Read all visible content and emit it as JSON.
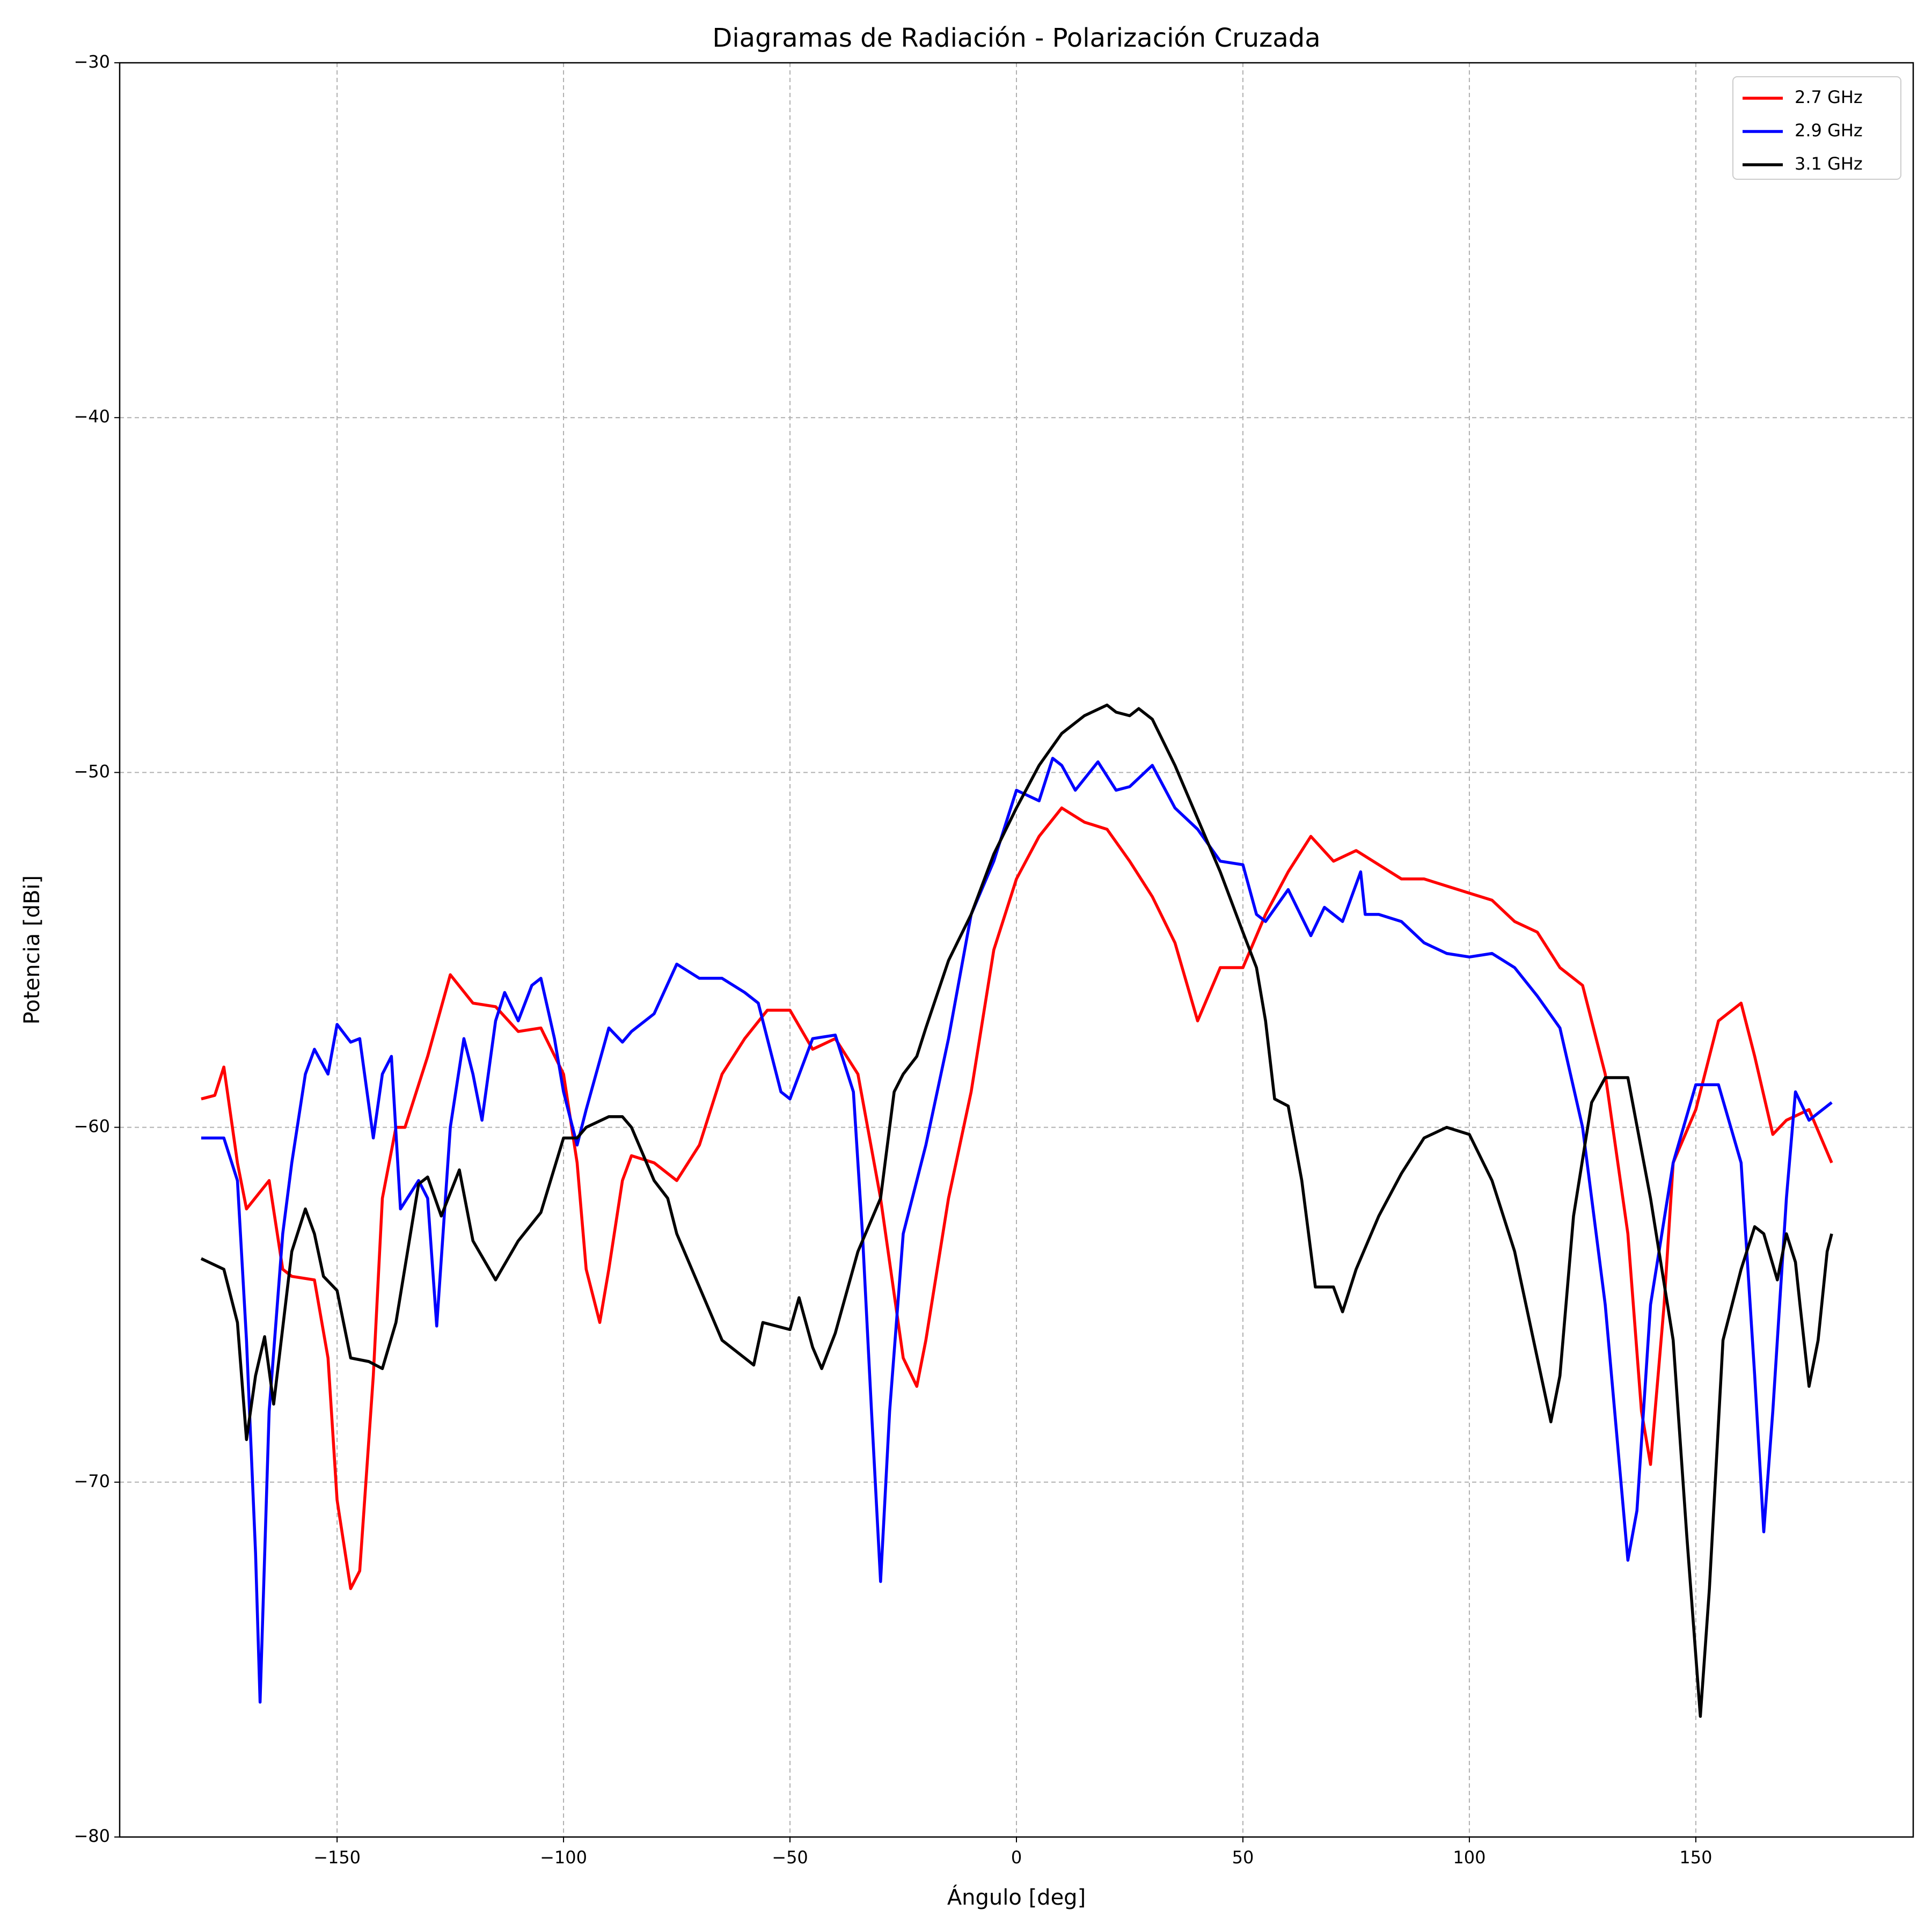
{
  "chart_data": {
    "type": "line",
    "title": "Diagramas de Radiación - Polarización Cruzada",
    "xlabel": "Ángulo [deg]",
    "ylabel": "Potencia [dBi]",
    "xlim": [
      -198,
      198
    ],
    "ylim": [
      -80,
      -30
    ],
    "xticks": [
      {
        "value": -150,
        "label": "−150"
      },
      {
        "value": -100,
        "label": "−100"
      },
      {
        "value": -50,
        "label": "−50"
      },
      0,
      50,
      100,
      150
    ],
    "yticks": [
      {
        "value": -80,
        "label": "−80"
      },
      {
        "value": -70,
        "label": "−70"
      },
      {
        "value": -60,
        "label": "−60"
      },
      {
        "value": -50,
        "label": "−50"
      },
      {
        "value": -40,
        "label": "−40"
      },
      {
        "value": -30,
        "label": "−30"
      }
    ],
    "grid": true,
    "legend": "upper right",
    "series": [
      {
        "name": "2.7 GHz",
        "color": "#ff0000",
        "x": [
          -180,
          -177,
          -175,
          -172,
          -170,
          -165,
          -162,
          -160,
          -155,
          -152,
          -150,
          -147,
          -145,
          -142,
          -140,
          -137,
          -135,
          -130,
          -125,
          -120,
          -115,
          -110,
          -105,
          -100,
          -97,
          -95,
          -92,
          -90,
          -87,
          -85,
          -80,
          -75,
          -70,
          -65,
          -60,
          -55,
          -50,
          -45,
          -40,
          -35,
          -30,
          -25,
          -22,
          -20,
          -15,
          -10,
          -5,
          0,
          5,
          10,
          15,
          20,
          25,
          30,
          35,
          40,
          45,
          50,
          55,
          60,
          65,
          70,
          75,
          80,
          85,
          90,
          95,
          100,
          105,
          110,
          115,
          120,
          125,
          130,
          135,
          138,
          140,
          143,
          145,
          150,
          155,
          160,
          163,
          167,
          170,
          175,
          180
        ],
        "values": [
          -59.2,
          -59.1,
          -58.3,
          -61,
          -62.3,
          -61.5,
          -64,
          -64.2,
          -64.3,
          -66.5,
          -70.5,
          -73,
          -72.5,
          -67,
          -62,
          -60,
          -60,
          -58,
          -55.7,
          -56.5,
          -56.6,
          -57.3,
          -57.2,
          -58.5,
          -61,
          -64,
          -65.5,
          -64,
          -61.5,
          -60.8,
          -61,
          -61.5,
          -60.5,
          -58.5,
          -57.5,
          -56.7,
          -56.7,
          -57.8,
          -57.5,
          -58.5,
          -62,
          -66.5,
          -67.3,
          -66,
          -62,
          -59,
          -55,
          -53,
          -51.8,
          -51,
          -51.4,
          -51.6,
          -52.5,
          -53.5,
          -54.8,
          -57,
          -55.5,
          -55.5,
          -54,
          -52.8,
          -51.8,
          -52.5,
          -52.2,
          -52.6,
          -53,
          -53,
          -53.2,
          -53.4,
          -53.6,
          -54.2,
          -54.5,
          -55.5,
          -56,
          -58.5,
          -63,
          -68,
          -69.5,
          -65,
          -61,
          -59.5,
          -57,
          -56.5,
          -58,
          -60.2,
          -59.8,
          -59.5,
          -61
        ]
      },
      {
        "name": "2.9 GHz",
        "color": "#0000ff",
        "x": [
          -180,
          -175,
          -172,
          -170,
          -168,
          -167,
          -165,
          -162,
          -160,
          -157,
          -155,
          -152,
          -150,
          -147,
          -145,
          -142,
          -140,
          -138,
          -136,
          -132,
          -130,
          -128,
          -125,
          -122,
          -120,
          -118,
          -115,
          -113,
          -110,
          -107,
          -105,
          -102,
          -100,
          -97,
          -95,
          -90,
          -87,
          -85,
          -80,
          -75,
          -70,
          -65,
          -60,
          -57,
          -55,
          -52,
          -50,
          -45,
          -40,
          -36,
          -34,
          -32,
          -30,
          -28,
          -25,
          -20,
          -15,
          -10,
          -5,
          0,
          5,
          8,
          10,
          13,
          18,
          22,
          25,
          30,
          35,
          40,
          45,
          50,
          53,
          55,
          60,
          65,
          68,
          72,
          76,
          77,
          80,
          85,
          90,
          95,
          100,
          105,
          110,
          115,
          120,
          125,
          130,
          135,
          137,
          140,
          145,
          150,
          155,
          160,
          163,
          165,
          167,
          170,
          172,
          175,
          180
        ],
        "values": [
          -60.3,
          -60.3,
          -61.5,
          -66,
          -72,
          -76.2,
          -68,
          -63,
          -61,
          -58.5,
          -57.8,
          -58.5,
          -57.1,
          -57.6,
          -57.5,
          -60.3,
          -58.5,
          -58,
          -62.3,
          -61.5,
          -62,
          -65.6,
          -60,
          -57.5,
          -58.5,
          -59.8,
          -57,
          -56.2,
          -57,
          -56,
          -55.8,
          -57.5,
          -59,
          -60.5,
          -59.5,
          -57.2,
          -57.6,
          -57.3,
          -56.8,
          -55.4,
          -55.8,
          -55.8,
          -56.2,
          -56.5,
          -57.5,
          -59,
          -59.2,
          -57.5,
          -57.4,
          -59,
          -63,
          -68,
          -72.8,
          -68,
          -63,
          -60.5,
          -57.5,
          -54,
          -52.5,
          -50.5,
          -50.8,
          -49.6,
          -49.8,
          -50.5,
          -49.7,
          -50.5,
          -50.4,
          -49.8,
          -51,
          -51.6,
          -52.5,
          -52.6,
          -54,
          -54.2,
          -53.3,
          -54.6,
          -53.8,
          -54.2,
          -52.8,
          -54,
          -54,
          -54.2,
          -54.8,
          -55.1,
          -55.2,
          -55.1,
          -55.5,
          -56.3,
          -57.2,
          -60,
          -65,
          -72.2,
          -70.8,
          -65,
          -61,
          -58.8,
          -58.8,
          -61,
          -67,
          -71.4,
          -68,
          -62,
          -59,
          -59.8,
          -59.3
        ]
      },
      {
        "name": "3.1 GHz",
        "color": "#000000",
        "x": [
          -180,
          -175,
          -172,
          -170,
          -168,
          -166,
          -164,
          -160,
          -157,
          -155,
          -153,
          -150,
          -147,
          -143,
          -140,
          -137,
          -132,
          -130,
          -127,
          -123,
          -120,
          -115,
          -110,
          -105,
          -100,
          -97,
          -95,
          -90,
          -87,
          -85,
          -80,
          -77,
          -75,
          -70,
          -65,
          -60,
          -58,
          -56,
          -50,
          -48,
          -45,
          -43,
          -40,
          -35,
          -30,
          -27,
          -25,
          -22,
          -20,
          -15,
          -10,
          -5,
          0,
          5,
          10,
          15,
          20,
          22,
          25,
          27,
          30,
          35,
          40,
          45,
          50,
          53,
          55,
          57,
          60,
          63,
          66,
          70,
          72,
          75,
          80,
          85,
          90,
          95,
          100,
          105,
          110,
          115,
          118,
          120,
          123,
          127,
          130,
          135,
          140,
          145,
          148,
          151,
          153,
          156,
          160,
          163,
          165,
          168,
          170,
          172,
          173,
          175,
          177,
          179,
          180
        ],
        "values": [
          -63.7,
          -64,
          -65.5,
          -68.8,
          -67,
          -65.9,
          -67.8,
          -63.5,
          -62.3,
          -63,
          -64.2,
          -64.6,
          -66.5,
          -66.6,
          -66.8,
          -65.5,
          -61.6,
          -61.4,
          -62.5,
          -61.2,
          -63.2,
          -64.3,
          -63.2,
          -62.4,
          -60.3,
          -60.3,
          -60,
          -59.7,
          -59.7,
          -60,
          -61.5,
          -62,
          -63,
          -64.5,
          -66,
          -66.5,
          -66.7,
          -65.5,
          -65.7,
          -64.8,
          -66.2,
          -66.8,
          -65.8,
          -63.5,
          -62,
          -59,
          -58.5,
          -58,
          -57.2,
          -55.3,
          -54,
          -52.3,
          -51,
          -49.8,
          -48.9,
          -48.4,
          -48.1,
          -48.3,
          -48.4,
          -48.2,
          -48.5,
          -49.8,
          -51.3,
          -52.8,
          -54.5,
          -55.5,
          -57,
          -59.2,
          -59.4,
          -61.5,
          -64.5,
          -64.5,
          -65.2,
          -64,
          -62.5,
          -61.3,
          -60.3,
          -60,
          -60.2,
          -61.5,
          -63.5,
          -66.5,
          -68.3,
          -67,
          -62.5,
          -59.3,
          -58.6,
          -58.6,
          -62,
          -66,
          -71.5,
          -76.6,
          -73,
          -66,
          -64,
          -62.8,
          -63,
          -64.3,
          -63,
          -63.8,
          -65,
          -67.3,
          -66,
          -63.5,
          -63
        ]
      }
    ]
  }
}
